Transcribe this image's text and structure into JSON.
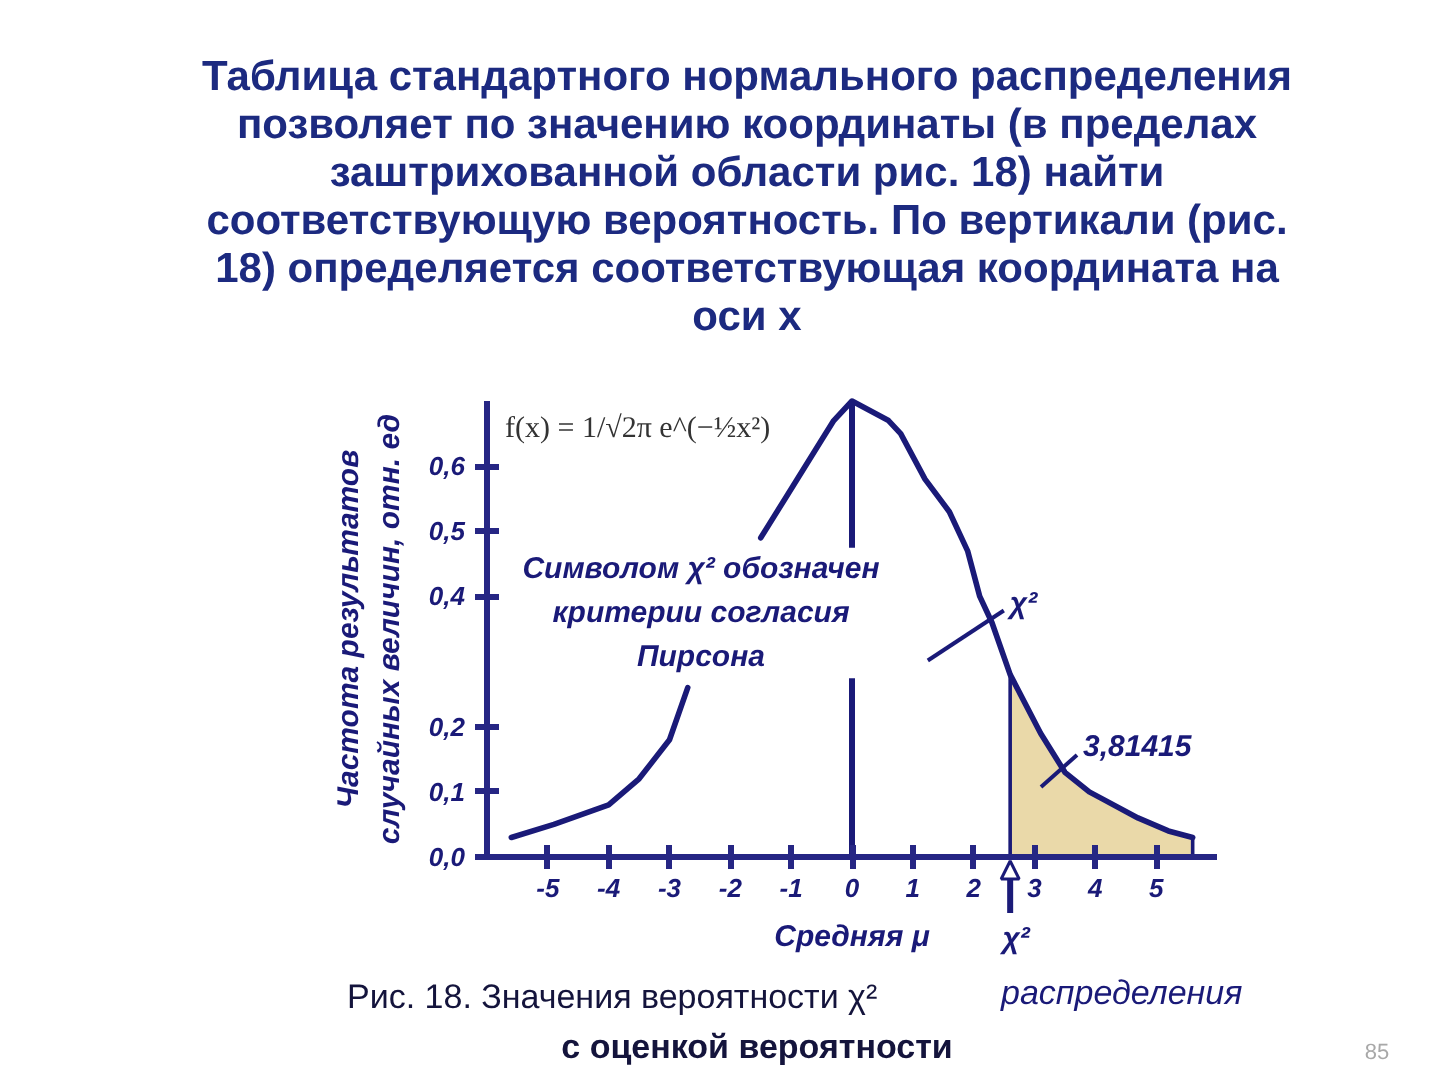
{
  "chart_data": {
    "type": "line",
    "title": "Таблица стандартного нормального распределения позволяет по значению координаты (в пределах заштрихованной области рис. 18) найти соответствующую вероятность. По вертикали (рис. 18) определяется соответствующая координата на оси x",
    "ylabel": "Частота результатов случайных величин, отн. ед",
    "xlim": [
      -6,
      6
    ],
    "ylim": [
      0,
      0.7
    ],
    "xticks": [
      -5,
      -4,
      -3,
      -2,
      -1,
      0,
      1,
      2,
      3,
      4,
      5
    ],
    "yticks": [
      {
        "value": 0,
        "label": "0,0"
      },
      {
        "value": 0.1,
        "label": "0,1"
      },
      {
        "value": 0.2,
        "label": "0,2"
      },
      {
        "value": 0.4,
        "label": "0,4"
      },
      {
        "value": 0.5,
        "label": "0,5"
      },
      {
        "value": 0.6,
        "label": "0,6"
      }
    ],
    "grid": false,
    "series": [
      {
        "type": "area",
        "color": "#ead9a9",
        "x": [
          2.6,
          3.1,
          3.5,
          3.9,
          4.1,
          4.7,
          5.2,
          5.6
        ],
        "values": [
          0.28,
          0.19,
          0.13,
          0.1,
          0.09,
          0.06,
          0.04,
          0.03
        ]
      },
      {
        "color": "#1a1a78",
        "x": [
          -5.6,
          -4.9,
          -4.6,
          -4.0,
          -3.5,
          -3.0,
          -2.7,
          -2.1,
          -1.5,
          -1.1,
          -0.5,
          -0.3,
          0,
          0.6,
          0.8,
          1.2,
          1.6,
          1.9,
          2.1,
          2.3,
          2.6,
          3.1,
          3.5,
          3.9,
          4.1,
          4.7,
          5.2,
          5.6
        ],
        "values": [
          0.03,
          0.05,
          0.06,
          0.08,
          0.12,
          0.18,
          0.26,
          null,
          0.49,
          0.55,
          0.64,
          0.67,
          0.7,
          0.67,
          0.65,
          0.58,
          0.53,
          0.47,
          0.4,
          0.36,
          0.28,
          0.19,
          0.13,
          0.1,
          0.09,
          0.06,
          0.04,
          0.03
        ]
      }
    ],
    "ref_lines": [
      {
        "axis": "x",
        "value": 0,
        "label": "Средняя μ"
      }
    ],
    "annotations": [
      "f(x) = 1/√2π e^(−½x²)",
      "Символом χ² обозначен критерии согласия Пирсона",
      {
        "text": "χ²",
        "x": 2.2,
        "y": 0.36
      },
      "3,81415",
      {
        "text": "χ²",
        "x": 2.6,
        "y": 0
      },
      "Рис. 18. Значения вероятности χ²",
      "распределения",
      "с оценкой вероятности",
      "85"
    ]
  }
}
